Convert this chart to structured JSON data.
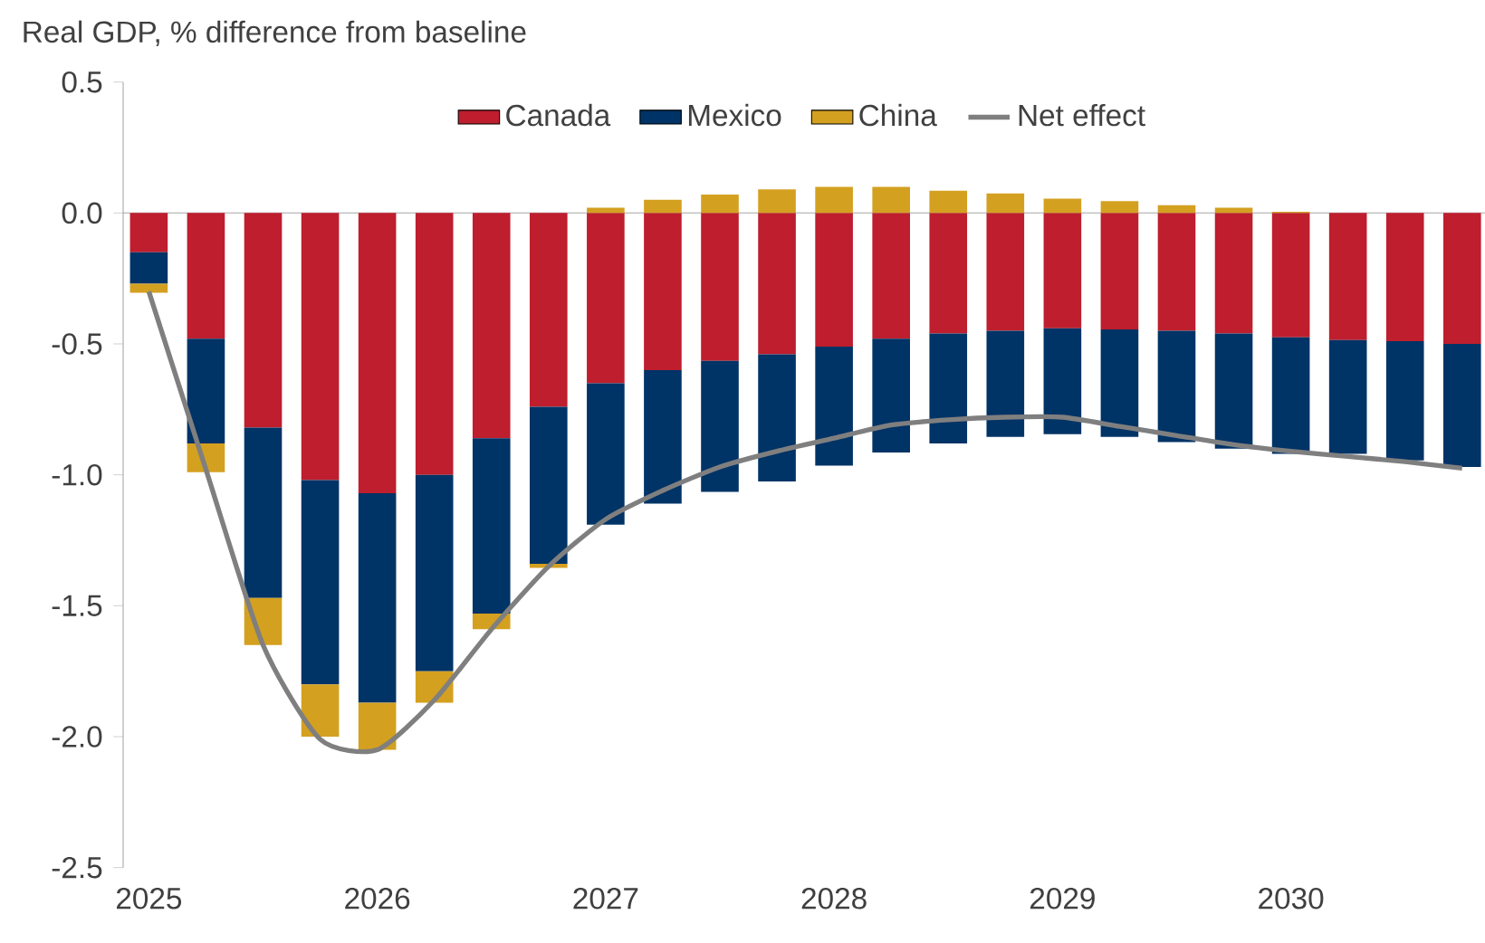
{
  "chart_data": {
    "type": "bar",
    "stacked": true,
    "ylabel": "Real GDP, % difference from baseline",
    "categories": [
      "2025",
      null,
      null,
      null,
      "2026",
      null,
      null,
      null,
      "2027",
      null,
      null,
      null,
      "2028",
      null,
      null,
      null,
      "2029",
      null,
      null,
      null,
      "2030",
      null,
      null,
      null
    ],
    "ylim": [
      -2.5,
      0.5
    ],
    "yticks": [
      {
        "value": -2.5,
        "label": "-2.5"
      },
      {
        "value": -2.0,
        "label": "-2.0"
      },
      {
        "value": -1.5,
        "label": "-1.5"
      },
      {
        "value": -1.0,
        "label": "-1.0"
      },
      {
        "value": -0.5,
        "label": "-0.5"
      },
      {
        "value": 0,
        "label": "0.0"
      },
      {
        "value": 0.5,
        "label": "0.5"
      }
    ],
    "legend": "top",
    "series": [
      {
        "name": "Canada",
        "color": "#be1e2d",
        "values": [
          -0.15,
          -0.48,
          -0.82,
          -1.02,
          -1.07,
          -1.0,
          -0.86,
          -0.74,
          -0.65,
          -0.6,
          -0.565,
          -0.54,
          -0.51,
          -0.48,
          -0.46,
          -0.45,
          -0.44,
          -0.445,
          -0.45,
          -0.46,
          -0.475,
          -0.485,
          -0.49,
          -0.5
        ]
      },
      {
        "name": "Mexico",
        "color": "#003366",
        "values": [
          -0.12,
          -0.4,
          -0.65,
          -0.78,
          -0.8,
          -0.75,
          -0.67,
          -0.6,
          -0.54,
          -0.51,
          -0.5,
          -0.485,
          -0.455,
          -0.435,
          -0.42,
          -0.405,
          -0.405,
          -0.41,
          -0.425,
          -0.44,
          -0.445,
          -0.435,
          -0.455,
          -0.47
        ]
      },
      {
        "name": "China",
        "color": "#d4a020",
        "values": [
          -0.035,
          -0.11,
          -0.18,
          -0.2,
          -0.18,
          -0.12,
          -0.06,
          -0.015,
          0.02,
          0.05,
          0.07,
          0.09,
          0.1,
          0.1,
          0.085,
          0.075,
          0.055,
          0.045,
          0.03,
          0.02,
          0.005,
          0,
          0,
          0
        ]
      },
      {
        "name": "Net effect",
        "type": "line",
        "color": "#7f7f7f",
        "values": [
          -0.3,
          -0.98,
          -1.65,
          -2.01,
          -2.05,
          -1.86,
          -1.59,
          -1.35,
          -1.17,
          -1.06,
          -0.97,
          -0.91,
          -0.86,
          -0.81,
          -0.79,
          -0.78,
          -0.78,
          -0.815,
          -0.85,
          -0.885,
          -0.91,
          -0.93,
          -0.95,
          -0.975
        ]
      }
    ]
  }
}
